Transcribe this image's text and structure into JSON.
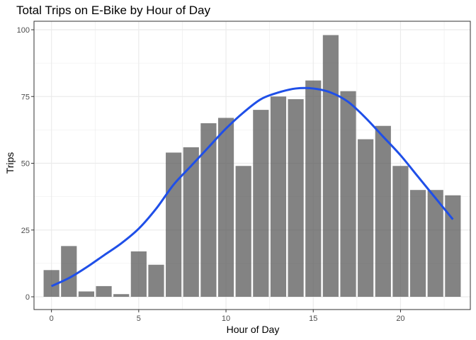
{
  "chart_data": {
    "type": "bar",
    "title": "Total Trips on E-Bike by Hour of Day",
    "xlabel": "Hour of Day",
    "ylabel": "Trips",
    "x": [
      0,
      1,
      2,
      3,
      4,
      5,
      6,
      7,
      8,
      9,
      10,
      11,
      12,
      13,
      14,
      15,
      16,
      17,
      18,
      19,
      20,
      21,
      22,
      23
    ],
    "values": [
      10,
      19,
      2,
      4,
      1,
      17,
      12,
      54,
      56,
      65,
      67,
      49,
      70,
      75,
      74,
      81,
      98,
      77,
      59,
      64,
      49,
      40,
      40,
      38
    ],
    "xlim": [
      -1,
      24
    ],
    "ylim": [
      0,
      100
    ],
    "xticks": [
      0,
      5,
      10,
      15,
      20
    ],
    "yticks": [
      0,
      25,
      50,
      75,
      100
    ],
    "smooth_line": {
      "x": [
        0,
        1,
        2,
        3,
        4,
        5,
        6,
        7,
        8,
        9,
        10,
        11,
        12,
        13,
        14,
        15,
        16,
        17,
        18,
        19,
        20,
        21,
        22,
        23
      ],
      "y": [
        4,
        7,
        11,
        15.5,
        20,
        25.5,
        33,
        42,
        49,
        56,
        63,
        69,
        74,
        76.5,
        78,
        78,
        76.5,
        73,
        67,
        60,
        53,
        45,
        37,
        29
      ]
    },
    "grid": true,
    "colors": {
      "bar": "#595959",
      "smooth": "#1f4fe8",
      "grid": "#ebebeb",
      "border": "#333333",
      "background": "#ffffff"
    }
  }
}
